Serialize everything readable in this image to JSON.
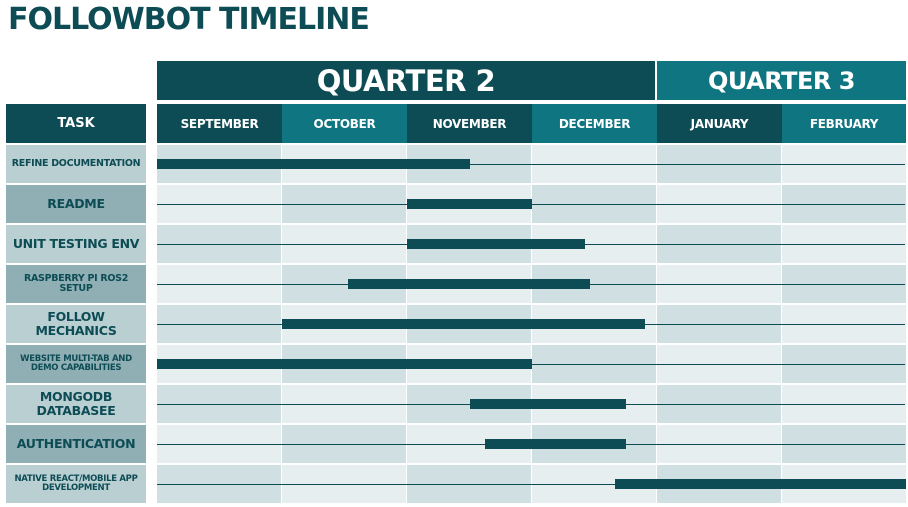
{
  "chart_data": {
    "type": "gantt",
    "title": "FOLLOWBOT TIMELINE",
    "task_header": "TASK",
    "quarters": [
      {
        "label": "QUARTER 2",
        "start_month": 0,
        "month_span": 4,
        "color": "#0d4c55"
      },
      {
        "label": "QUARTER 3",
        "start_month": 4,
        "month_span": 2,
        "color": "#0f7581"
      }
    ],
    "months": [
      {
        "label": "SEPTEMBER",
        "color": "#0d4c55"
      },
      {
        "label": "OCTOBER",
        "color": "#0f7581"
      },
      {
        "label": "NOVEMBER",
        "color": "#0d4c55"
      },
      {
        "label": "DECEMBER",
        "color": "#0f7581"
      },
      {
        "label": "JANUARY",
        "color": "#0d4c55"
      },
      {
        "label": "FEBRUARY",
        "color": "#0f7581"
      }
    ],
    "tasks": [
      {
        "label": "REFINE DOCUMENTATION",
        "start": 0.0,
        "end": 2.5
      },
      {
        "label": "README",
        "start": 2.0,
        "end": 3.0
      },
      {
        "label": "UNIT TESTING ENV",
        "start": 2.0,
        "end": 3.42
      },
      {
        "label": "RASPBERRY PI ROS2 SETUP",
        "start": 1.53,
        "end": 3.46
      },
      {
        "label": "FOLLOW MECHANICS",
        "start": 1.0,
        "end": 3.9
      },
      {
        "label": "WEBSITE MULTI-TAB AND DEMO CAPABILITIES",
        "start": 0.0,
        "end": 3.0
      },
      {
        "label": "MONGODB DATABASEE",
        "start": 2.5,
        "end": 3.75
      },
      {
        "label": "AUTHENTICATION",
        "start": 2.62,
        "end": 3.75
      },
      {
        "label": "NATIVE REACT/MOBILE APP DEVELOPMENT",
        "start": 3.66,
        "end": 6.0
      }
    ],
    "colors": {
      "dark": "#0d4c55",
      "teal": "#0f7581",
      "label_bg_light": "#b9cfd2",
      "label_bg_dark": "#8fafb4",
      "cell_a": "#e6eef0",
      "cell_b": "#cfdfe2"
    }
  }
}
